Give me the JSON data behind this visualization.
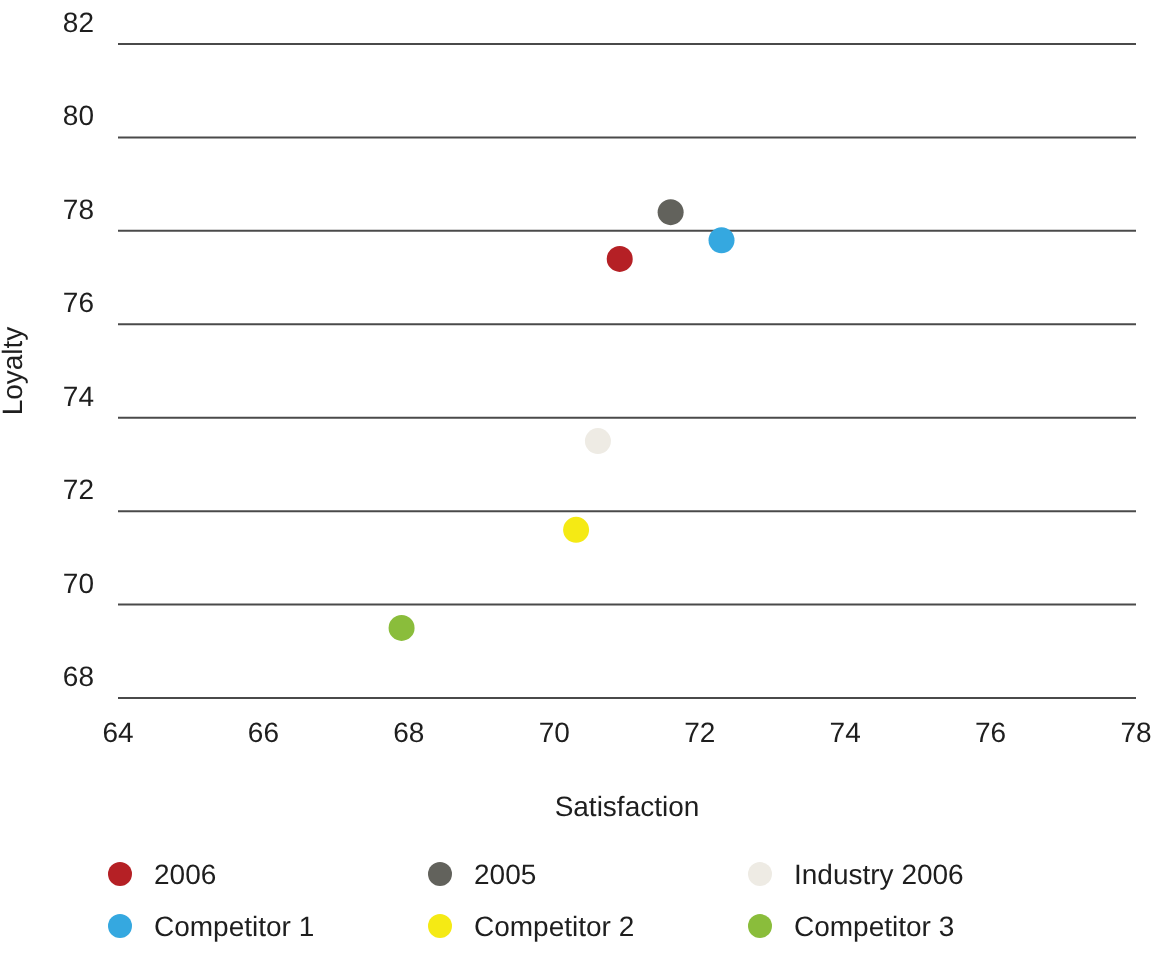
{
  "chart_data": {
    "type": "scatter",
    "xlabel": "Satisfaction",
    "ylabel": "Loyalty",
    "xlim": [
      64,
      78
    ],
    "xticks": [
      64,
      66,
      68,
      70,
      72,
      74,
      76,
      78
    ],
    "ylim": [
      68,
      82
    ],
    "yticks": [
      68,
      70,
      72,
      74,
      76,
      78,
      80,
      82
    ],
    "grid": "y",
    "legend": "bottom",
    "marker": "circle",
    "series": [
      {
        "name": "2006",
        "color": "#b52025",
        "x": [
          70.9
        ],
        "values": [
          77.4
        ]
      },
      {
        "name": "2005",
        "color": "#62625c",
        "x": [
          71.6
        ],
        "values": [
          78.4
        ]
      },
      {
        "name": "Industry 2006",
        "color": "#eeebe4",
        "x": [
          70.6
        ],
        "values": [
          73.5
        ]
      },
      {
        "name": "Competitor 1",
        "color": "#35a8e0",
        "x": [
          72.3
        ],
        "values": [
          77.8
        ]
      },
      {
        "name": "Competitor 2",
        "color": "#f5ea14",
        "x": [
          70.3
        ],
        "values": [
          71.6
        ]
      },
      {
        "name": "Competitor 3",
        "color": "#8abd3b",
        "x": [
          67.9
        ],
        "values": [
          69.5
        ]
      }
    ]
  }
}
